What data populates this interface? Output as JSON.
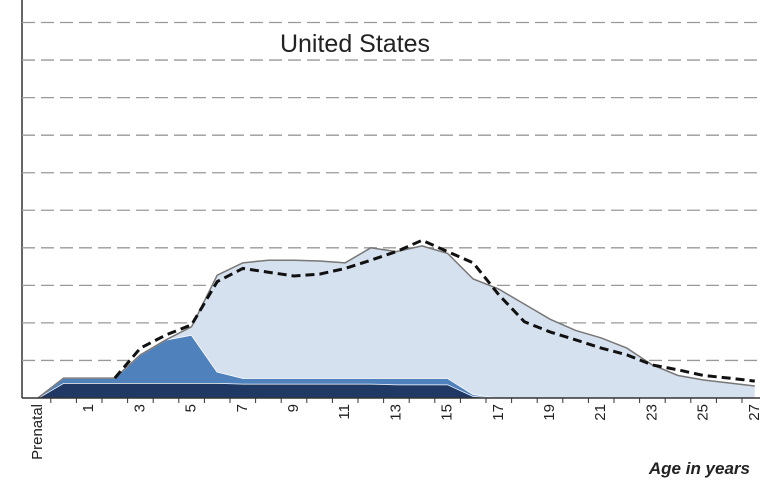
{
  "chart_data": {
    "type": "area",
    "title": "United States",
    "x_label": "Age in years",
    "categories": [
      "Prenatal",
      null,
      "1",
      null,
      "3",
      null,
      "5",
      null,
      "7",
      null,
      "9",
      null,
      "11",
      null,
      "13",
      null,
      "15",
      null,
      "17",
      null,
      "19",
      null,
      "21",
      null,
      "23",
      null,
      "25",
      null,
      "27"
    ],
    "stacked": true,
    "series": [
      {
        "type": "area",
        "color": "#1f3864",
        "values": [
          0,
          0.4,
          0.4,
          0.4,
          0.4,
          0.4,
          0.4,
          0.4,
          0.38,
          0.38,
          0.38,
          0.38,
          0.38,
          0.38,
          0.36,
          0.36,
          0.36,
          0.05,
          0,
          0,
          0,
          0,
          0,
          0,
          0,
          0,
          0,
          0,
          0
        ]
      },
      {
        "type": "area",
        "color": "#4f81bd",
        "values": [
          0,
          0.13,
          0.13,
          0.13,
          0.75,
          1.15,
          1.28,
          0.3,
          0.15,
          0.15,
          0.15,
          0.15,
          0.15,
          0.15,
          0.17,
          0.17,
          0.17,
          0.05,
          0,
          0,
          0,
          0,
          0,
          0,
          0,
          0,
          0,
          0,
          0
        ]
      },
      {
        "type": "area",
        "color": "#d6e1ef",
        "values": [
          0,
          0,
          0,
          0,
          0,
          0,
          0.22,
          2.57,
          3.07,
          3.14,
          3.14,
          3.12,
          3.07,
          3.47,
          3.37,
          3.52,
          3.32,
          3.07,
          2.9,
          2.5,
          2.1,
          1.8,
          1.6,
          1.33,
          0.88,
          0.6,
          0.48,
          0.4,
          0.32
        ]
      },
      {
        "type": "line",
        "dashed": true,
        "color": "#111111",
        "values": [
          null,
          null,
          null,
          0.53,
          1.33,
          1.68,
          1.95,
          3.1,
          3.45,
          3.35,
          3.25,
          3.3,
          3.45,
          3.67,
          3.9,
          4.2,
          3.9,
          3.6,
          2.75,
          2.03,
          1.76,
          1.55,
          1.33,
          1.15,
          0.88,
          0.75,
          0.6,
          0.53,
          0.45
        ]
      }
    ],
    "ylim": [
      0,
      10.6
    ],
    "yticks": [
      1,
      2,
      3,
      4,
      5,
      6,
      7,
      8,
      9,
      10
    ],
    "grid": true
  }
}
